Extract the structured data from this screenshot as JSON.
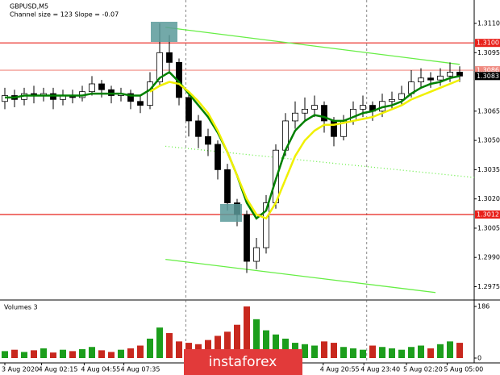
{
  "chart_data": {
    "type": "candlestick",
    "title": "GBPUSD,M5",
    "indicator_label": "Channel size = 123 Slope = -0.07",
    "open": [
      1.307,
      1.3073,
      1.3071,
      1.3074,
      1.3073,
      1.3074,
      1.3071,
      1.3073,
      1.3072,
      1.3075,
      1.3079,
      1.3076,
      1.3073,
      1.3074,
      1.307,
      1.3068,
      1.308,
      1.3095,
      1.309,
      1.3072,
      1.306,
      1.3052,
      1.3048,
      1.3035,
      1.3018,
      1.3012,
      1.2988,
      1.2995,
      1.3018,
      1.3045,
      1.306,
      1.3064,
      1.3066,
      1.3068,
      1.306,
      1.3052,
      1.306,
      1.3066,
      1.3068,
      1.3065,
      1.307,
      1.3071,
      1.3074,
      1.308,
      1.3082,
      1.3081,
      1.3083,
      1.3085
    ],
    "high": [
      1.3077,
      1.3076,
      1.3077,
      1.3078,
      1.3077,
      1.3077,
      1.3076,
      1.3076,
      1.3078,
      1.3083,
      1.3081,
      1.3078,
      1.3077,
      1.3076,
      1.3073,
      1.3085,
      1.311,
      1.3104,
      1.3092,
      1.3075,
      1.3063,
      1.3056,
      1.305,
      1.3038,
      1.302,
      1.3014,
      1.3,
      1.3022,
      1.3048,
      1.3064,
      1.307,
      1.3072,
      1.3073,
      1.307,
      1.3062,
      1.3063,
      1.307,
      1.3073,
      1.307,
      1.3074,
      1.3075,
      1.3078,
      1.3086,
      1.3087,
      1.3085,
      1.3087,
      1.309,
      1.3088
    ],
    "low": [
      1.3066,
      1.3067,
      1.3068,
      1.3069,
      1.307,
      1.3066,
      1.3068,
      1.3069,
      1.307,
      1.3073,
      1.3072,
      1.3069,
      1.307,
      1.3066,
      1.3064,
      1.3066,
      1.3078,
      1.3085,
      1.3068,
      1.3052,
      1.3046,
      1.3042,
      1.303,
      1.3014,
      1.3006,
      1.2982,
      1.2984,
      1.2992,
      1.3015,
      1.3042,
      1.3056,
      1.306,
      1.3062,
      1.3054,
      1.3047,
      1.305,
      1.3058,
      1.3062,
      1.306,
      1.3062,
      1.3066,
      1.3068,
      1.3072,
      1.3077,
      1.3077,
      1.3078,
      1.308,
      1.308
    ],
    "close": [
      1.3073,
      1.3071,
      1.3074,
      1.3073,
      1.3074,
      1.3071,
      1.3073,
      1.3072,
      1.3075,
      1.3079,
      1.3076,
      1.3073,
      1.3074,
      1.307,
      1.3068,
      1.308,
      1.3095,
      1.309,
      1.3072,
      1.306,
      1.3052,
      1.3048,
      1.3035,
      1.3018,
      1.3012,
      1.2988,
      1.2995,
      1.3018,
      1.3045,
      1.306,
      1.3064,
      1.3066,
      1.3068,
      1.306,
      1.3052,
      1.306,
      1.3066,
      1.3068,
      1.3065,
      1.307,
      1.3071,
      1.3074,
      1.308,
      1.3082,
      1.3081,
      1.3083,
      1.3085,
      1.3083
    ],
    "series": [
      {
        "color": "#008000",
        "values": [
          1.3072,
          1.3072,
          1.3073,
          1.3073,
          1.3073,
          1.3073,
          1.3073,
          1.3073,
          1.3073,
          1.3074,
          1.3074,
          1.3074,
          1.3074,
          1.3073,
          1.3073,
          1.3076,
          1.3082,
          1.3085,
          1.308,
          1.3074,
          1.3068,
          1.3062,
          1.3054,
          1.3044,
          1.3032,
          1.3018,
          1.301,
          1.3014,
          1.303,
          1.3045,
          1.3055,
          1.306,
          1.3063,
          1.3062,
          1.306,
          1.306,
          1.3062,
          1.3064,
          1.3065,
          1.3067,
          1.3068,
          1.307,
          1.3074,
          1.3077,
          1.3079,
          1.308,
          1.3082,
          1.3083
        ]
      },
      {
        "color": "#f0f000",
        "values": [
          null,
          null,
          null,
          null,
          null,
          null,
          null,
          null,
          null,
          null,
          null,
          null,
          null,
          null,
          null,
          1.3075,
          1.3078,
          1.308,
          1.3079,
          1.3075,
          1.307,
          1.3064,
          1.3055,
          1.3044,
          1.3032,
          1.302,
          1.3012,
          1.301,
          1.3018,
          1.303,
          1.3042,
          1.305,
          1.3055,
          1.3058,
          1.3058,
          1.3059,
          1.306,
          1.3061,
          1.3062,
          1.3064,
          1.3066,
          1.3068,
          1.3071,
          1.3073,
          1.3075,
          1.3077,
          1.3079,
          1.3081
        ]
      }
    ],
    "ylim": [
      1.2969,
      1.3122
    ],
    "yticks": [
      {
        "value": 1.311,
        "label": "1.3110"
      },
      1.3095,
      1.3065,
      {
        "value": 1.305,
        "label": "1.3050"
      },
      1.3035,
      {
        "value": 1.302,
        "label": "1.3020"
      },
      1.3005,
      {
        "value": 1.299,
        "label": "1.2990"
      },
      1.2975
    ],
    "levels": [
      {
        "price": {
          "value": 1.31,
          "label": "1.3100"
        },
        "color": "#e8201a"
      },
      {
        "price": 1.3012,
        "color": "#e8201a"
      },
      {
        "price": 1.3086,
        "color": "#f08a80"
      }
    ],
    "current_price": 1.3083,
    "trend_lines": {
      "color": "#66ee44",
      "lines": [
        {
          "x": [
            16.6,
            47
          ],
          "y": [
            1.3108,
            1.3089
          ],
          "style": "solid"
        },
        {
          "x": [
            16.6,
            48.5
          ],
          "y": [
            1.3047,
            1.3031
          ],
          "style": "dotted"
        },
        {
          "x": [
            16.6,
            44.5
          ],
          "y": [
            1.2989,
            1.2972
          ],
          "style": "solid"
        }
      ]
    },
    "day_separators": [
      18.7,
      37.4
    ],
    "xticks": [
      {
        "value": 0,
        "label": "3 Aug 2020"
      },
      {
        "value": 3.8,
        "label": "4 Aug 02:15"
      },
      {
        "value": 8.2,
        "label": "4 Aug 04:55"
      },
      {
        "value": 12.3,
        "label": "4 Aug 07:35"
      },
      {
        "value": 32.9,
        "label": "4 Aug 20:55"
      },
      {
        "value": 37.1,
        "label": "4 Aug 23:40"
      },
      {
        "value": 41.5,
        "label": "5 Aug 02:20"
      },
      {
        "value": 45.7,
        "label": "5 Aug 05:00"
      }
    ],
    "volume": {
      "label": "Volumes 3",
      "ylim": [
        0,
        186
      ],
      "yticks": [
        186,
        0
      ],
      "values": [
        25,
        30,
        22,
        28,
        35,
        20,
        30,
        25,
        32,
        40,
        28,
        22,
        30,
        35,
        45,
        70,
        110,
        90,
        60,
        55,
        50,
        65,
        80,
        95,
        120,
        186,
        140,
        100,
        85,
        70,
        55,
        50,
        45,
        60,
        55,
        40,
        35,
        30,
        45,
        40,
        35,
        30,
        40,
        45,
        35,
        50,
        60,
        55
      ]
    },
    "watermark": "instaforex"
  }
}
